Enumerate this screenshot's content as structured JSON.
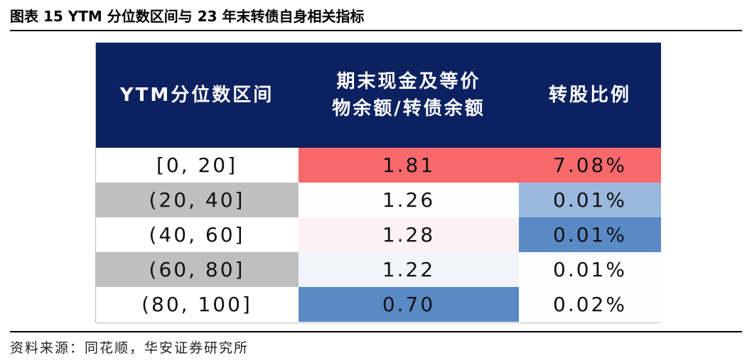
{
  "figure": {
    "title": "图表 15 YTM 分位数区间与 23 年末转债自身相关指标",
    "source": "资料来源：同花顺，华安证券研究所"
  },
  "table": {
    "headers": {
      "col1": "YTM分位数区间",
      "col2_line1": "期末现金及等价",
      "col2_line2": "物余额/转债余额",
      "col3": "转股比例"
    },
    "rows": [
      {
        "range": "[0, 20]",
        "cash_ratio": "1.81",
        "conversion": "7.08%"
      },
      {
        "range": "(20, 40]",
        "cash_ratio": "1.26",
        "conversion": "0.01%"
      },
      {
        "range": "(40, 60]",
        "cash_ratio": "1.28",
        "conversion": "0.01%"
      },
      {
        "range": "(60, 80]",
        "cash_ratio": "1.22",
        "conversion": "0.01%"
      },
      {
        "range": "(80, 100]",
        "cash_ratio": "0.70",
        "conversion": "0.02%"
      }
    ]
  },
  "colors": {
    "header_bg": "#0c2160",
    "header_text": "#ffffff",
    "range_bg": [
      "#ffffff",
      "#bfbfbf",
      "#ffffff",
      "#bfbfbf",
      "#ffffff"
    ],
    "cash_ratio_bg": [
      "#f8696b",
      "#fefefe",
      "#fcf1f4",
      "#f1f5fb",
      "#5a8ac6"
    ],
    "conversion_bg": [
      "#f8696b",
      "#9ab8de",
      "#5a8ac6",
      "#fefefe",
      "#fefefe"
    ]
  }
}
